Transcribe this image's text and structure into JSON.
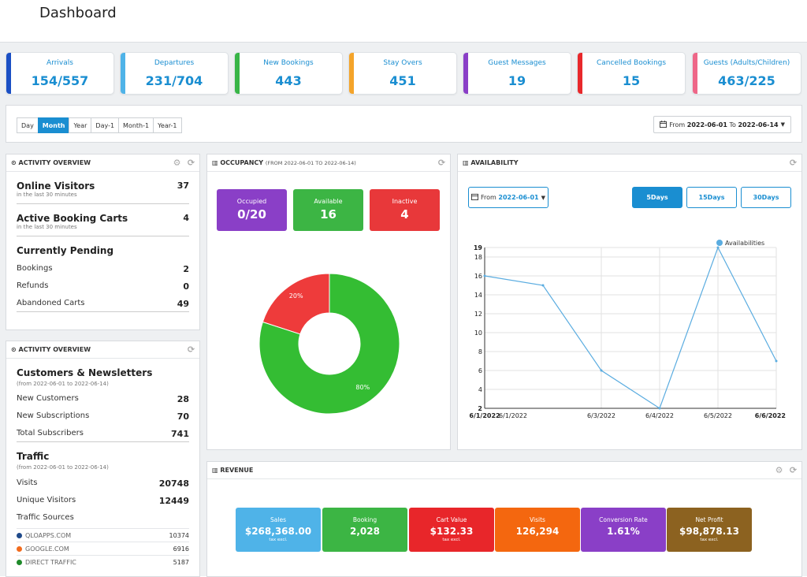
{
  "page_title": "Dashboard",
  "kpis": [
    {
      "label": "Arrivals",
      "value": "154/557",
      "color": "#1a4fc4"
    },
    {
      "label": "Departures",
      "value": "231/704",
      "color": "#4fb3e8"
    },
    {
      "label": "New Bookings",
      "value": "443",
      "color": "#38b547"
    },
    {
      "label": "Stay Overs",
      "value": "451",
      "color": "#f4a42a"
    },
    {
      "label": "Guest Messages",
      "value": "19",
      "color": "#8a3fc7"
    },
    {
      "label": "Cancelled Bookings",
      "value": "15",
      "color": "#e8282b"
    },
    {
      "label": "Guests (Adults/Children)",
      "value": "463/225",
      "color": "#ee6788"
    }
  ],
  "filter": {
    "periods": [
      "Day",
      "Month",
      "Year",
      "Day-1",
      "Month-1",
      "Year-1"
    ],
    "active_period": "Month",
    "date_from_label": "From",
    "date_from": "2022-06-01",
    "date_to_label": "To",
    "date_to": "2022-06-14"
  },
  "activity": {
    "title": "ACTIVITY OVERVIEW",
    "online_visitors": {
      "label": "Online Visitors",
      "sub": "in the last 30 minutes",
      "value": "37"
    },
    "active_carts": {
      "label": "Active Booking Carts",
      "sub": "in the last 30 minutes",
      "value": "4"
    },
    "pending_title": "Currently Pending",
    "pending": [
      {
        "label": "Bookings",
        "value": "2"
      },
      {
        "label": "Refunds",
        "value": "0"
      },
      {
        "label": "Abandoned Carts",
        "value": "49"
      }
    ]
  },
  "activity2": {
    "title": "ACTIVITY OVERVIEW",
    "customers_title": "Customers & Newsletters",
    "customers_sub": "(from 2022-06-01 to 2022-06-14)",
    "customers": [
      {
        "label": "New Customers",
        "value": "28"
      },
      {
        "label": "New Subscriptions",
        "value": "70"
      },
      {
        "label": "Total Subscribers",
        "value": "741"
      }
    ],
    "traffic_title": "Traffic",
    "traffic_sub": "(from 2022-06-01 to 2022-06-14)",
    "traffic": [
      {
        "label": "Visits",
        "value": "20748"
      },
      {
        "label": "Unique Visitors",
        "value": "12449"
      }
    ],
    "sources_title": "Traffic Sources",
    "sources": [
      {
        "label": "QLOAPPS.COM",
        "value": "10374",
        "color": "#1f4a8a"
      },
      {
        "label": "GOOGLE.COM",
        "value": "6916",
        "color": "#f26b1d"
      },
      {
        "label": "DIRECT TRAFFIC",
        "value": "5187",
        "color": "#1f8a2a"
      }
    ]
  },
  "occupancy": {
    "title": "OCCUPANCY",
    "subtitle": "(FROM 2022-06-01 TO 2022-06-14)",
    "boxes": [
      {
        "label": "Occupied",
        "value": "0/20",
        "color": "#8a3fc7"
      },
      {
        "label": "Available",
        "value": "16",
        "color": "#3cb544"
      },
      {
        "label": "Inactive",
        "value": "4",
        "color": "#e8383a"
      }
    ]
  },
  "availability": {
    "title": "AVAILABILITY",
    "from_label": "From",
    "from_date": "2022-06-01",
    "ranges": [
      "5Days",
      "15Days",
      "30Days"
    ],
    "active_range": "5Days"
  },
  "revenue": {
    "title": "REVENUE",
    "cards": [
      {
        "label": "Sales",
        "value": "$268,368.00",
        "note": "tax excl.",
        "color": "#4fb3e8"
      },
      {
        "label": "Booking",
        "value": "2,028",
        "note": "",
        "color": "#3cb544"
      },
      {
        "label": "Cart Value",
        "value": "$132.33",
        "note": "tax excl.",
        "color": "#e8262a"
      },
      {
        "label": "Visits",
        "value": "126,294",
        "note": "",
        "color": "#f4670f"
      },
      {
        "label": "Conversion Rate",
        "value": "1.61%",
        "note": "",
        "color": "#8a3fc7"
      },
      {
        "label": "Net Profit",
        "value": "$98,878.13",
        "note": "tax excl.",
        "color": "#8c6220"
      }
    ]
  },
  "chart_data": [
    {
      "type": "pie",
      "donut": true,
      "labels": [
        "Inactive",
        "Available"
      ],
      "values": [
        20,
        80
      ],
      "slice_labels": [
        "20%",
        "80%"
      ],
      "colors": [
        "#ee3b3b",
        "#34bd33"
      ]
    },
    {
      "type": "line",
      "series": [
        {
          "name": "Availabilities",
          "color": "#5aace0",
          "x": [
            "2022-06-01",
            "2022-06-02",
            "2022-06-03",
            "2022-06-04",
            "2022-06-05",
            "2022-06-06"
          ],
          "values": [
            16,
            15,
            6,
            2,
            19,
            7
          ]
        }
      ],
      "ylim": [
        2,
        19
      ],
      "yticks": [
        "19",
        "18",
        "16",
        "14",
        "12",
        "10",
        "8",
        "6",
        "4",
        "2"
      ],
      "ytick_values": [
        19,
        18,
        16,
        14,
        12,
        10,
        8,
        6,
        4,
        2
      ],
      "xticks": [
        "6/1/2022",
        "6/1/2022",
        "6/3/2022",
        "6/4/2022",
        "6/5/2022",
        "6/6/2022"
      ],
      "xtick_values": [
        "2022-06-01",
        "2022-06-01",
        "2022-06-03",
        "2022-06-04",
        "2022-06-05",
        "2022-06-06"
      ],
      "xtick_bold": [
        true,
        false,
        false,
        false,
        false,
        true
      ],
      "legend_position": "top-right",
      "grid": true
    }
  ]
}
